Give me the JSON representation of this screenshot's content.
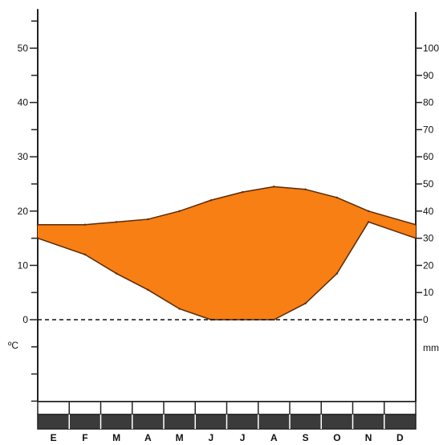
{
  "chart_data": {
    "type": "area",
    "title": "",
    "categories": [
      "E",
      "F",
      "M",
      "A",
      "M",
      "J",
      "J",
      "A",
      "S",
      "O",
      "N",
      "D"
    ],
    "left_axis": {
      "ticks": [
        {
          "value": 50,
          "label": "50"
        },
        {
          "value": 40,
          "label": "40"
        },
        {
          "value": 30,
          "label": "30"
        },
        {
          "value": 20,
          "label": "20"
        },
        {
          "value": 10,
          "label": "10"
        },
        {
          "value": 0,
          "label": "0"
        }
      ],
      "unit": "ºC",
      "ylim": [
        -15,
        55
      ]
    },
    "right_axis": {
      "ticks": [
        {
          "value": 100,
          "label": "100"
        },
        {
          "value": 90,
          "label": "90"
        },
        {
          "value": 80,
          "label": "80"
        },
        {
          "value": 70,
          "label": "70"
        },
        {
          "value": 60,
          "label": "60"
        },
        {
          "value": 50,
          "label": "50"
        },
        {
          "value": 40,
          "label": "40"
        },
        {
          "value": 30,
          "label": "30"
        },
        {
          "value": 20,
          "label": "20"
        },
        {
          "value": 10,
          "label": "10"
        },
        {
          "value": 0,
          "label": "0"
        }
      ],
      "unit": "mm"
    },
    "series": [
      {
        "values": [
          17.5,
          17.5,
          18,
          18.5,
          20,
          22,
          23.5,
          24.5,
          24,
          22.5,
          20,
          17.5
        ]
      },
      {
        "values": [
          15,
          12,
          8.5,
          5.5,
          2,
          0,
          0,
          0,
          3,
          8.5,
          18,
          15
        ]
      }
    ],
    "colors": {
      "fill": "#f77f13",
      "line": "#5a2a08",
      "axis": "#222222",
      "band": "#3b3b3b"
    }
  }
}
